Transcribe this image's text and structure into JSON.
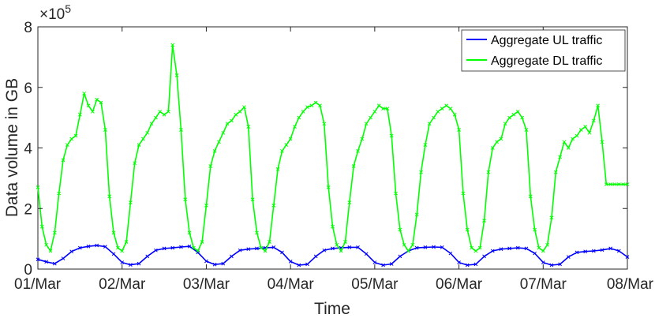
{
  "chart_data": {
    "type": "line",
    "xlabel": "Time",
    "ylabel": "Data volume in GB",
    "y_exponent_label": "×10",
    "y_exponent_power": "5",
    "xlim": [
      0,
      7
    ],
    "ylim": [
      0,
      8
    ],
    "x_ticks": [
      {
        "value": 0,
        "label": "01/Mar"
      },
      {
        "value": 1,
        "label": "02/Mar"
      },
      {
        "value": 2,
        "label": "03/Mar"
      },
      {
        "value": 3,
        "label": "04/Mar"
      },
      {
        "value": 4,
        "label": "05/Mar"
      },
      {
        "value": 5,
        "label": "06/Mar"
      },
      {
        "value": 6,
        "label": "07/Mar"
      },
      {
        "value": 7,
        "label": "08/Mar"
      }
    ],
    "y_ticks": [
      {
        "value": 0,
        "label": "0"
      },
      {
        "value": 2,
        "label": "2"
      },
      {
        "value": 4,
        "label": "4"
      },
      {
        "value": 6,
        "label": "6"
      },
      {
        "value": 8,
        "label": "8"
      }
    ],
    "grid": false,
    "legend_position": "top-right",
    "series": [
      {
        "name": "Aggregate UL traffic",
        "color": "#0000ff",
        "marker": "x",
        "x": [
          0,
          0.1,
          0.2,
          0.3,
          0.4,
          0.5,
          0.6,
          0.7,
          0.8,
          0.9,
          1.0,
          1.1,
          1.2,
          1.3,
          1.4,
          1.5,
          1.6,
          1.7,
          1.8,
          1.9,
          2.0,
          2.1,
          2.2,
          2.3,
          2.4,
          2.5,
          2.6,
          2.7,
          2.8,
          2.9,
          3.0,
          3.1,
          3.2,
          3.3,
          3.4,
          3.5,
          3.6,
          3.7,
          3.8,
          3.9,
          4.0,
          4.1,
          4.2,
          4.3,
          4.4,
          4.5,
          4.6,
          4.7,
          4.8,
          4.9,
          5.0,
          5.1,
          5.2,
          5.3,
          5.4,
          5.5,
          5.6,
          5.7,
          5.8,
          5.9,
          6.0,
          6.1,
          6.2,
          6.3,
          6.4,
          6.5,
          6.6,
          6.7,
          6.8,
          6.9,
          7.0
        ],
        "values": [
          0.32,
          0.24,
          0.18,
          0.35,
          0.58,
          0.7,
          0.75,
          0.78,
          0.74,
          0.5,
          0.22,
          0.14,
          0.18,
          0.42,
          0.62,
          0.68,
          0.7,
          0.73,
          0.75,
          0.55,
          0.26,
          0.15,
          0.18,
          0.42,
          0.62,
          0.66,
          0.68,
          0.7,
          0.72,
          0.55,
          0.25,
          0.13,
          0.16,
          0.42,
          0.62,
          0.68,
          0.7,
          0.72,
          0.72,
          0.5,
          0.22,
          0.13,
          0.17,
          0.42,
          0.6,
          0.7,
          0.72,
          0.73,
          0.72,
          0.52,
          0.22,
          0.13,
          0.16,
          0.42,
          0.6,
          0.66,
          0.68,
          0.7,
          0.68,
          0.52,
          0.22,
          0.13,
          0.16,
          0.4,
          0.55,
          0.58,
          0.6,
          0.63,
          0.68,
          0.6,
          0.4
        ]
      },
      {
        "name": "Aggregate DL traffic",
        "color": "#00ff00",
        "marker": "x",
        "x": [
          0,
          0.05,
          0.1,
          0.15,
          0.2,
          0.25,
          0.3,
          0.35,
          0.4,
          0.45,
          0.5,
          0.55,
          0.6,
          0.65,
          0.7,
          0.75,
          0.8,
          0.85,
          0.9,
          0.95,
          1.0,
          1.05,
          1.1,
          1.15,
          1.2,
          1.25,
          1.3,
          1.35,
          1.4,
          1.45,
          1.5,
          1.55,
          1.6,
          1.65,
          1.7,
          1.75,
          1.8,
          1.85,
          1.9,
          1.95,
          2.0,
          2.05,
          2.1,
          2.15,
          2.2,
          2.25,
          2.3,
          2.35,
          2.4,
          2.45,
          2.5,
          2.55,
          2.6,
          2.65,
          2.7,
          2.75,
          2.8,
          2.85,
          2.9,
          2.95,
          3.0,
          3.05,
          3.1,
          3.15,
          3.2,
          3.25,
          3.3,
          3.35,
          3.4,
          3.45,
          3.5,
          3.55,
          3.6,
          3.65,
          3.7,
          3.75,
          3.8,
          3.85,
          3.9,
          3.95,
          4.0,
          4.05,
          4.1,
          4.15,
          4.2,
          4.25,
          4.3,
          4.35,
          4.4,
          4.45,
          4.5,
          4.55,
          4.6,
          4.65,
          4.7,
          4.75,
          4.8,
          4.85,
          4.9,
          4.95,
          5.0,
          5.05,
          5.1,
          5.15,
          5.2,
          5.25,
          5.3,
          5.35,
          5.4,
          5.45,
          5.5,
          5.55,
          5.6,
          5.65,
          5.7,
          5.75,
          5.8,
          5.85,
          5.9,
          5.95,
          6.0,
          6.05,
          6.1,
          6.15,
          6.2,
          6.25,
          6.3,
          6.35,
          6.4,
          6.45,
          6.5,
          6.55,
          6.6,
          6.65,
          6.7,
          6.75,
          6.8,
          6.85,
          6.9,
          6.95,
          7.0
        ],
        "values": [
          2.7,
          1.4,
          0.8,
          0.6,
          1.2,
          2.5,
          3.6,
          4.1,
          4.3,
          4.4,
          5.1,
          5.8,
          5.4,
          5.2,
          5.6,
          5.5,
          4.6,
          2.4,
          1.2,
          0.7,
          0.6,
          0.9,
          2.2,
          3.5,
          4.1,
          4.3,
          4.5,
          4.8,
          5.0,
          5.2,
          5.1,
          5.2,
          7.4,
          6.4,
          4.6,
          2.3,
          1.2,
          0.7,
          0.6,
          0.9,
          2.1,
          3.4,
          3.9,
          4.2,
          4.5,
          4.8,
          4.9,
          5.1,
          5.2,
          5.35,
          4.7,
          2.3,
          1.2,
          0.7,
          0.6,
          0.9,
          2.1,
          3.3,
          3.9,
          4.1,
          4.3,
          4.7,
          5.0,
          5.2,
          5.35,
          5.4,
          5.5,
          5.4,
          4.8,
          2.7,
          1.4,
          0.8,
          0.6,
          0.9,
          2.2,
          3.4,
          3.9,
          4.3,
          4.8,
          5.0,
          5.2,
          5.4,
          5.3,
          5.3,
          4.4,
          2.5,
          1.3,
          0.8,
          0.6,
          0.8,
          1.8,
          3.2,
          4.1,
          4.8,
          5.0,
          5.2,
          5.3,
          5.4,
          5.3,
          5.1,
          4.6,
          2.5,
          1.3,
          0.7,
          0.6,
          0.7,
          1.6,
          3.2,
          4.0,
          4.2,
          4.3,
          4.8,
          5.0,
          5.1,
          5.2,
          5.0,
          4.6,
          2.4,
          1.3,
          0.7,
          0.6,
          0.8,
          1.7,
          3.2,
          3.7,
          4.2,
          4.0,
          4.3,
          4.4,
          4.6,
          4.7,
          4.5,
          4.9,
          5.4,
          4.2,
          2.8,
          2.8,
          2.8,
          2.8,
          2.8,
          2.8
        ]
      }
    ]
  }
}
